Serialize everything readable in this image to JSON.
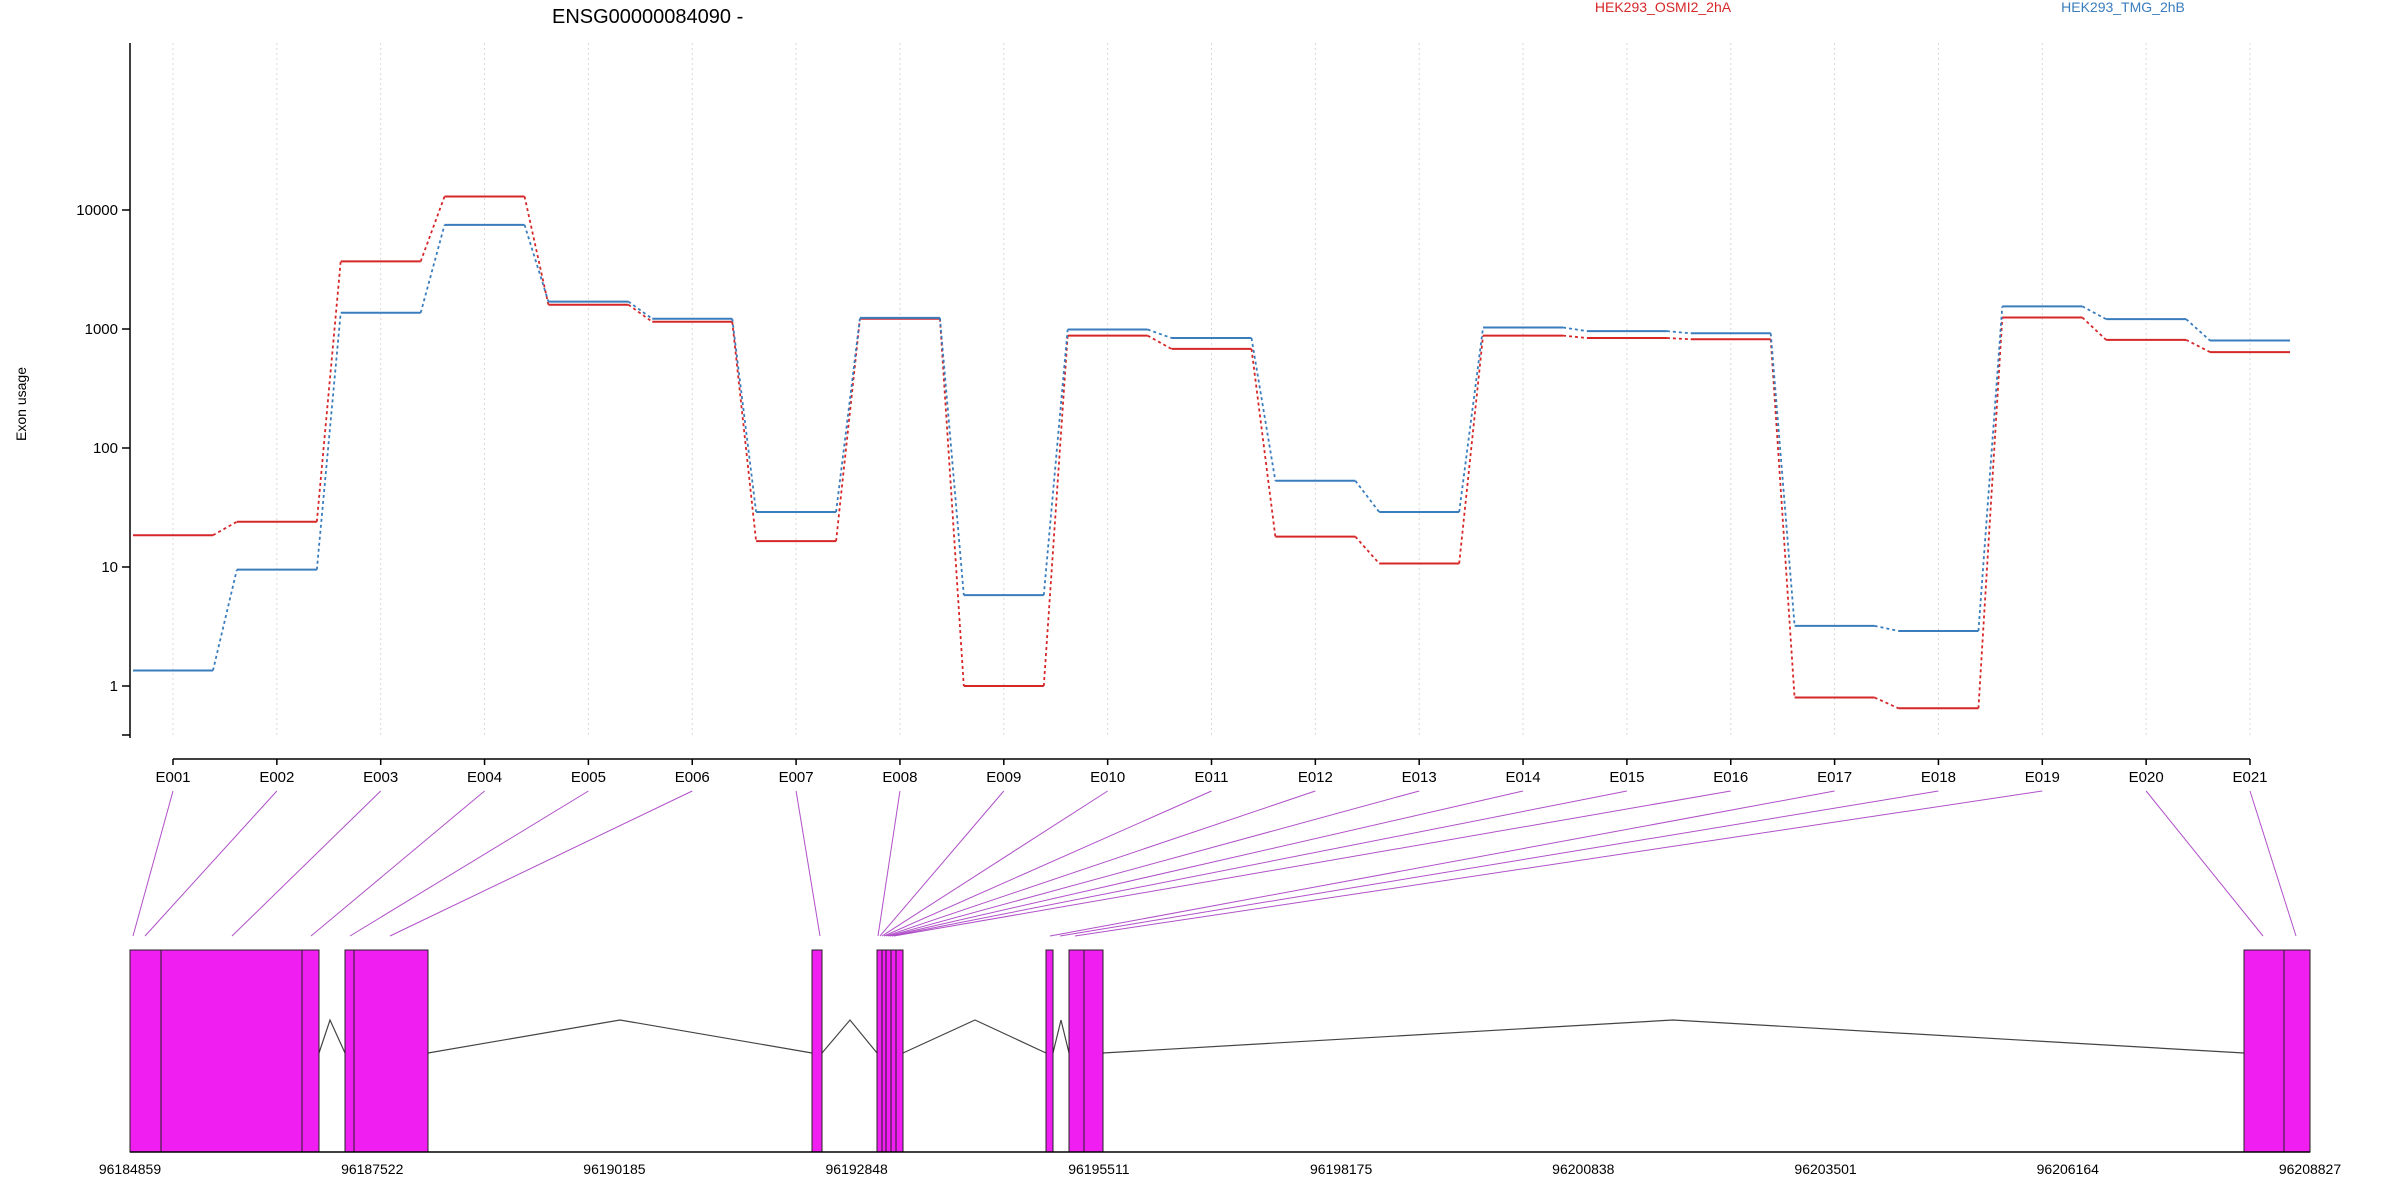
{
  "chart_data": {
    "type": "line",
    "title": "ENSG00000084090 -",
    "xlabel": "",
    "ylabel": "Exon usage",
    "y_scale": "log",
    "ylim": [
      0.5,
      20000
    ],
    "y_ticks": [
      1,
      10,
      100,
      1000,
      10000
    ],
    "y_tick_labels": [
      "1",
      "10",
      "100",
      "1000",
      "10000"
    ],
    "grid": "vertical dotted at each exon",
    "legend_placement": "top",
    "categories": [
      "E001",
      "E002",
      "E003",
      "E004",
      "E005",
      "E006",
      "E007",
      "E008",
      "E009",
      "E010",
      "E011",
      "E012",
      "E013",
      "E014",
      "E015",
      "E016",
      "E017",
      "E018",
      "E019",
      "E020",
      "E021"
    ],
    "series": [
      {
        "name": "HEK293_OSMI2_2hA",
        "color": "#d62728",
        "values": [
          18.5,
          24,
          3700,
          13000,
          1600,
          1150,
          16.5,
          1220,
          1.0,
          880,
          680,
          18,
          10.7,
          880,
          840,
          820,
          0.8,
          0.65,
          1250,
          810,
          640
        ]
      },
      {
        "name": "HEK293_TMG_2hB",
        "color": "#3a7dbd",
        "values": [
          1.35,
          9.5,
          1370,
          7500,
          1700,
          1220,
          29,
          1240,
          5.8,
          990,
          840,
          53,
          29,
          1030,
          960,
          920,
          3.2,
          2.9,
          1550,
          1210,
          800
        ]
      }
    ],
    "gene_model": {
      "tick_labels": [
        "96184859",
        "96187522",
        "96190185",
        "96192848",
        "96195511",
        "96198175",
        "96200838",
        "96203501",
        "96206164",
        "96208827"
      ],
      "exon_color": "#f01ef0",
      "connector_color": "#b050c8"
    }
  }
}
